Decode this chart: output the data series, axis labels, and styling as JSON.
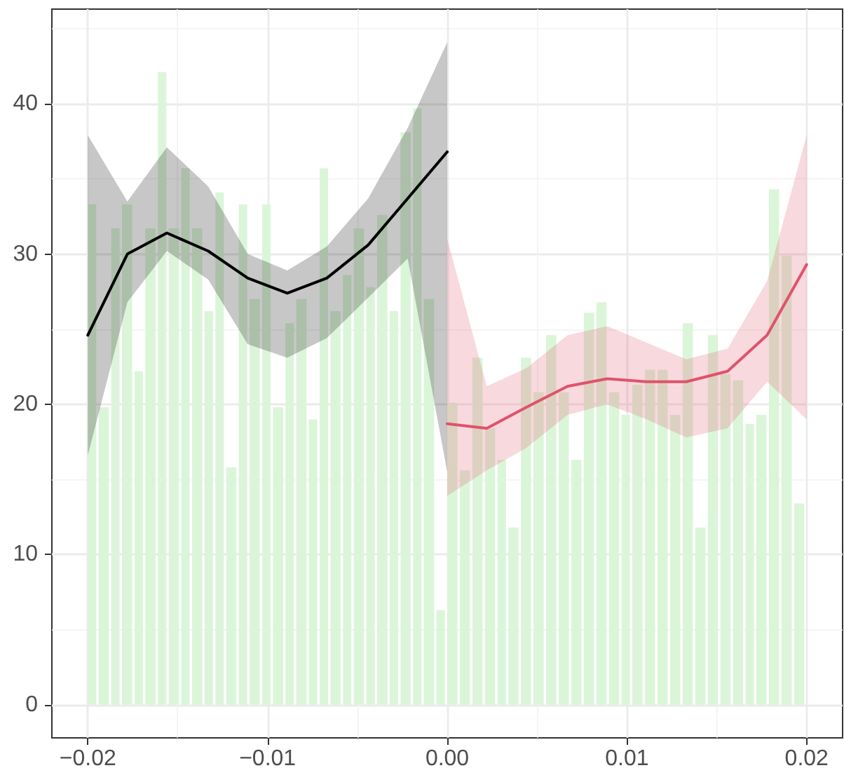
{
  "chart_data": {
    "type": "histogram",
    "bins": [
      -0.02,
      -0.0194,
      -0.0187,
      -0.0181,
      -0.0174,
      -0.0168,
      -0.0161,
      -0.0155,
      -0.0148,
      -0.0142,
      -0.0135,
      -0.0129,
      -0.0123,
      -0.0116,
      -0.011,
      -0.0103,
      -0.0097,
      -0.009,
      -0.0084,
      -0.0077,
      -0.0071,
      -0.0065,
      -0.0058,
      -0.0052,
      -0.0045,
      -0.0039,
      -0.0032,
      -0.0026,
      -0.0019,
      -0.0013,
      -0.0006,
      0,
      0.0007,
      0.0014,
      0.0021,
      0.0028,
      0.0034,
      0.0041,
      0.0048,
      0.0055,
      0.0062,
      0.0069,
      0.0076,
      0.0083,
      0.009,
      0.0097,
      0.0103,
      0.011,
      0.0117,
      0.0124,
      0.0131,
      0.0138,
      0.0145,
      0.0152,
      0.0159,
      0.0166,
      0.0172,
      0.0179,
      0.0186,
      0.0193,
      0.02
    ],
    "values": [
      33.3,
      19.8,
      31.7,
      33.3,
      22.2,
      31.7,
      42.1,
      31.7,
      35.7,
      31.7,
      26.2,
      34.1,
      15.8,
      33.3,
      27.0,
      33.3,
      19.8,
      25.4,
      27.0,
      19.0,
      35.7,
      26.2,
      28.6,
      31.7,
      27.8,
      32.6,
      26.2,
      38.1,
      39.7,
      27.0,
      6.3,
      20.1,
      15.6,
      23.1,
      18.4,
      16.3,
      11.8,
      23.1,
      20.8,
      24.6,
      20.8,
      16.3,
      26.1,
      26.8,
      20.8,
      19.3,
      21.3,
      22.3,
      22.3,
      19.3,
      25.4,
      11.8,
      24.6,
      22.0,
      21.6,
      18.7,
      19.3,
      34.3,
      29.9,
      13.4
    ],
    "color": "#dbf5d9",
    "series": [
      {
        "type": "line",
        "color": "#000000",
        "x": [
          -0.02,
          -0.0178,
          -0.0156,
          -0.0133,
          -0.0111,
          -0.0089,
          -0.0067,
          -0.0044,
          -0.0022,
          0
        ],
        "values": [
          24.6,
          30.0,
          31.4,
          30.2,
          28.4,
          27.4,
          28.4,
          30.6,
          33.7,
          36.8
        ],
        "lower": [
          16.6,
          26.8,
          30.2,
          28.3,
          24.0,
          23.1,
          24.4,
          27.1,
          29.7,
          15.5
        ],
        "upper": [
          37.9,
          33.5,
          37.1,
          34.5,
          30.0,
          28.9,
          30.5,
          33.7,
          38.4,
          44.1
        ]
      },
      {
        "type": "line",
        "color": "#df536b",
        "x": [
          0,
          0.0022,
          0.0044,
          0.0067,
          0.0089,
          0.0111,
          0.0133,
          0.0156,
          0.0178,
          0.02
        ],
        "values": [
          18.7,
          18.4,
          19.8,
          21.2,
          21.7,
          21.5,
          21.5,
          22.2,
          24.6,
          29.3
        ],
        "lower": [
          13.9,
          15.6,
          17.1,
          19.3,
          20.0,
          19.0,
          17.8,
          18.4,
          21.5,
          19.0
        ],
        "upper": [
          31.0,
          21.2,
          22.4,
          24.6,
          25.2,
          24.1,
          23.0,
          23.7,
          28.2,
          37.9
        ]
      }
    ],
    "xlim": [
      -0.022,
      0.022
    ],
    "xticks": [
      {
        "value": -0.02,
        "label": "−0.02"
      },
      {
        "value": -0.01,
        "label": "−0.01"
      },
      {
        "value": 0,
        "label": "0.00"
      },
      0.01,
      0.02
    ],
    "ylim": [
      -2.2,
      46.3
    ],
    "yticks": [
      0,
      10,
      20,
      30,
      40
    ],
    "grid": true
  }
}
